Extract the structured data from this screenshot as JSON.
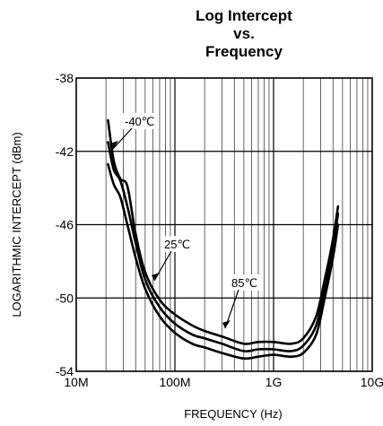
{
  "chart_data": {
    "type": "line",
    "title": [
      "Log Intercept",
      "vs.",
      "Frequency"
    ],
    "xlabel": "FREQUENCY (Hz)",
    "ylabel": "LOGARITHMIC INTERCEPT (dBm)",
    "x_scale": "log",
    "xlim": [
      10000000,
      10000000000
    ],
    "ylim": [
      -54,
      -38
    ],
    "x_ticks": [
      10000000,
      100000000,
      1000000000,
      10000000000
    ],
    "x_tick_labels": [
      "10M",
      "100M",
      "1G",
      "10G"
    ],
    "y_ticks": [
      -38,
      -42,
      -46,
      -50,
      -54
    ],
    "y_tick_labels": [
      "-38",
      "-42",
      "-46",
      "-50",
      "-54"
    ],
    "grid": true,
    "series": [
      {
        "name": "-40℃",
        "x": [
          21000000,
          24000000,
          28000000,
          33000000,
          40000000,
          50000000,
          70000000,
          100000000,
          150000000,
          200000000,
          300000000,
          500000000,
          700000000,
          1000000000,
          1500000000,
          2000000000,
          2700000000,
          3300000000,
          4000000000,
          4500000000
        ],
        "y": [
          -40.3,
          -42.5,
          -43.5,
          -43.9,
          -46.5,
          -48.6,
          -50.1,
          -50.9,
          -51.5,
          -51.8,
          -52.1,
          -52.5,
          -52.4,
          -52.4,
          -52.5,
          -52.2,
          -51.0,
          -49.0,
          -46.8,
          -45.0
        ]
      },
      {
        "name": "25℃",
        "x": [
          21000000,
          24000000,
          28000000,
          33000000,
          40000000,
          50000000,
          70000000,
          100000000,
          150000000,
          200000000,
          300000000,
          500000000,
          700000000,
          1000000000,
          1500000000,
          2000000000,
          2700000000,
          3300000000,
          4000000000,
          4500000000
        ],
        "y": [
          -41.5,
          -43.0,
          -43.6,
          -45.0,
          -47.0,
          -49.0,
          -50.5,
          -51.4,
          -52.0,
          -52.2,
          -52.5,
          -52.9,
          -52.8,
          -52.8,
          -52.9,
          -52.6,
          -51.5,
          -49.5,
          -47.2,
          -45.4
        ]
      },
      {
        "name": "85℃",
        "x": [
          21000000,
          24000000,
          28000000,
          33000000,
          40000000,
          50000000,
          70000000,
          100000000,
          150000000,
          200000000,
          300000000,
          500000000,
          700000000,
          1000000000,
          1500000000,
          2000000000,
          2700000000,
          3300000000,
          4000000000,
          4500000000
        ],
        "y": [
          -42.7,
          -43.8,
          -44.5,
          -46.0,
          -47.8,
          -49.5,
          -51.0,
          -51.9,
          -52.5,
          -52.7,
          -53.0,
          -53.3,
          -53.2,
          -53.1,
          -53.2,
          -53.0,
          -52.0,
          -50.0,
          -47.8,
          -46.0
        ]
      }
    ],
    "annotations": [
      "-40℃",
      "25℃",
      "85℃"
    ]
  }
}
